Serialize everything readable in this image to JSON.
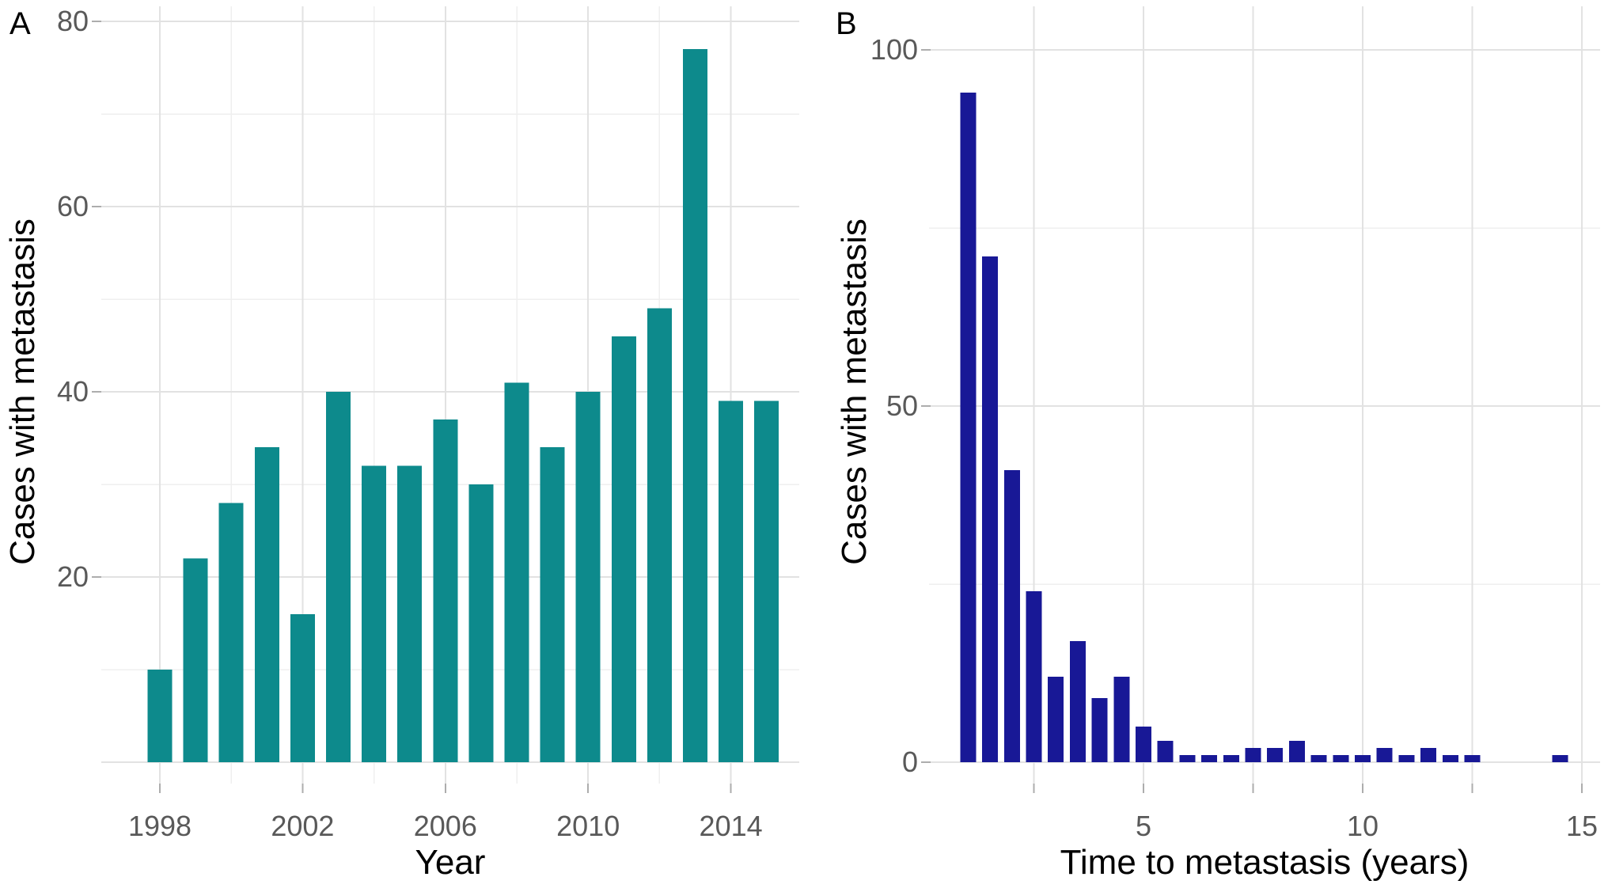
{
  "chart_data": [
    {
      "panel_label": "A",
      "type": "bar",
      "title": "",
      "xlabel": "Year",
      "ylabel": "Cases with metastasis",
      "categories": [
        1998,
        1999,
        2000,
        2001,
        2002,
        2003,
        2004,
        2005,
        2006,
        2007,
        2008,
        2009,
        2010,
        2011,
        2012,
        2013,
        2014,
        2015
      ],
      "values": [
        10,
        22,
        28,
        34,
        16,
        40,
        32,
        32,
        37,
        30,
        41,
        34,
        40,
        46,
        49,
        77,
        39,
        39
      ],
      "x_tick_values": [
        1998,
        2002,
        2006,
        2010,
        2014
      ],
      "x_tick_labels": [
        "1998",
        "2002",
        "2006",
        "2010",
        "2014"
      ],
      "x_minor_gridlines": [
        2000,
        2004,
        2008,
        2012
      ],
      "y_tick_values": [
        20,
        40,
        60,
        80
      ],
      "y_tick_labels": [
        "20",
        "40",
        "60",
        "80"
      ],
      "y_minor_gridlines": [
        10,
        30,
        50,
        70
      ],
      "ylim": [
        0,
        81.6
      ],
      "xlim": [
        1996.4,
        2015.9
      ],
      "grid": true,
      "legend": false,
      "bar_color": "#0D8A8C"
    },
    {
      "panel_label": "B",
      "type": "bar",
      "title": "",
      "xlabel": "Time to metastasis (years)",
      "ylabel": "Cases with metastasis",
      "x": [
        1.0,
        1.5,
        2.0,
        2.5,
        3.0,
        3.5,
        4.0,
        4.5,
        5.0,
        5.5,
        6.0,
        6.5,
        7.0,
        7.5,
        8.0,
        8.5,
        9.0,
        9.5,
        10.0,
        10.5,
        11.0,
        11.5,
        12.0,
        12.5,
        13.0,
        13.5,
        14.0,
        14.5
      ],
      "values": [
        94,
        71,
        41,
        24,
        12,
        17,
        9,
        12,
        5,
        3,
        1,
        1,
        1,
        2,
        2,
        3,
        1,
        1,
        1,
        2,
        1,
        2,
        1,
        1,
        0,
        0,
        0,
        1
      ],
      "bin_width_years": 0.5,
      "x_tick_values": [
        5,
        10,
        15
      ],
      "x_tick_labels": [
        "5",
        "10",
        "15"
      ],
      "x_grid_breaks": [
        2.5,
        5,
        7.5,
        10,
        12.5,
        15
      ],
      "y_tick_values": [
        0,
        50,
        100
      ],
      "y_tick_labels": [
        "0",
        "50",
        "100"
      ],
      "y_minor_gridlines": [
        25,
        75
      ],
      "ylim": [
        0,
        106
      ],
      "xlim": [
        0.2,
        15.4
      ],
      "grid": true,
      "legend": false,
      "bar_color": "#181896"
    }
  ],
  "style": {
    "background": "#ffffff",
    "grid_major_color": "#e2e2e2",
    "grid_minor_color": "#efefef",
    "tick_mark_color": "#adadad",
    "tick_label_color": "#595959",
    "axis_title_color": "#000000",
    "panel_label_color": "#000000"
  }
}
